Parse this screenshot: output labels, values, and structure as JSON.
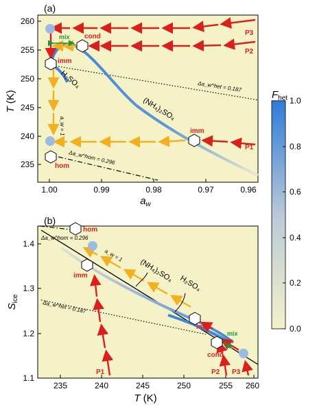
{
  "figure": {
    "panel_a": {
      "label": "(a)",
      "ylabel": "T (K)",
      "xlabel": "a_w",
      "xticks": [
        "1.00",
        "0.99",
        "0.98",
        "0.97",
        "0.96"
      ],
      "yticks": [
        "235",
        "240",
        "245",
        "250",
        "255",
        "260"
      ],
      "annotations": {
        "het": "Δa_w^het = 0.187",
        "hom": "Δa_w^hom = 0.296",
        "aw1": "a_w = 1",
        "h2so4": "H₂SO₄",
        "nh4": "(NH₄)₂SO₄"
      }
    },
    "panel_b": {
      "label": "(b)",
      "ylabel": "S_ice",
      "xlabel": "T (K)",
      "xticks": [
        "235",
        "240",
        "245",
        "250",
        "255",
        "260"
      ],
      "yticks": [
        "1.1",
        "1.2",
        "1.3",
        "1.4"
      ],
      "annotations": {
        "het": "Δa_w^het = 0.187",
        "hom": "Δa_w^hom = 0.296",
        "aw1": "a_w = 1",
        "h2so4": "H₂SO₄",
        "nh4": "(NH₄)₂SO₄"
      }
    },
    "point_labels": {
      "p1": "P1",
      "p2": "P2",
      "p3": "P3",
      "imm": "imm",
      "hom": "hom",
      "cond": "cond",
      "mix": "mix"
    },
    "colorbar": {
      "title": "F_het",
      "ticks": [
        "0.0",
        "0.2",
        "0.4",
        "0.6",
        "0.8",
        "1.0"
      ],
      "range": [
        0,
        1
      ]
    },
    "colors": {
      "background": "#f6f2c8",
      "arrow_red": "#d8201c",
      "arrow_orange": "#f2b020",
      "curve_blue": "#3f86d6",
      "marker_fill": "#9bbbe0",
      "mix_green": "#1a9a3a"
    }
  },
  "chart_data": [
    {
      "panel": "a",
      "type": "line",
      "xlabel": "a_w",
      "ylabel": "T (K)",
      "xlim": [
        1.001,
        0.955
      ],
      "ylim": [
        233,
        259.5
      ],
      "xlim_note": "reversed axis",
      "series": [
        {
          "name": "(NH₄)₂SO₄",
          "x": [
            0.9995,
            0.997,
            0.994,
            0.991,
            0.988,
            0.985,
            0.982,
            0.979,
            0.976,
            0.972,
            0.968,
            0.964,
            0.96,
            0.956
          ],
          "y": [
            252.3,
            255.4,
            255.5,
            254.2,
            252.3,
            250.5,
            248.5,
            246.5,
            244.3,
            241.7,
            239.4,
            237.2,
            235.3,
            233.3
          ]
        },
        {
          "name": "H₂SO₄",
          "x": [
            1.0,
            0.998,
            0.996,
            0.9935
          ],
          "y": [
            252.6,
            251.4,
            250.0,
            248.0
          ]
        }
      ],
      "points": [
        {
          "label": "P3 start",
          "x": 1.0,
          "y": 258.4
        },
        {
          "label": "cond",
          "x": 0.9935,
          "y": 255.6
        },
        {
          "label": "imm",
          "x": 1.0,
          "y": 252.5
        },
        {
          "label": "imm",
          "x": 1.0,
          "y": 238.5
        },
        {
          "label": "imm",
          "x": 0.9695,
          "y": 239.0
        },
        {
          "label": "hom",
          "x": 1.0,
          "y": 236.0
        }
      ]
    },
    {
      "panel": "b",
      "type": "line",
      "xlabel": "T (K)",
      "ylabel": "S_ice",
      "xlim": [
        233,
        260.5
      ],
      "ylim": [
        1.1,
        1.46
      ],
      "series": [
        {
          "name": "a_w = 1",
          "x": [
            233,
            260.5
          ],
          "y": [
            1.455,
            1.15
          ]
        },
        {
          "name": "(NH₄)₂SO₄",
          "x": [
            238.5,
            242,
            246,
            250,
            254,
            257
          ],
          "y": [
            1.375,
            1.335,
            1.295,
            1.26,
            1.215,
            1.17
          ]
        },
        {
          "name": "H₂SO₄",
          "x": [
            248,
            250,
            252,
            254,
            256
          ],
          "y": [
            1.262,
            1.248,
            1.232,
            1.213,
            1.19
          ]
        },
        {
          "name": "Δa_w^het = 0.187",
          "x": [
            233,
            253
          ],
          "y": [
            1.293,
            1.223
          ]
        },
        {
          "name": "P1",
          "x": [
            241.2,
            239.8,
            239.0,
            238.9
          ],
          "y": [
            1.1,
            1.19,
            1.3,
            1.39
          ]
        },
        {
          "name": "P2",
          "x": [
            256.5,
            255.8,
            255.4
          ],
          "y": [
            1.1,
            1.15,
            1.18
          ]
        },
        {
          "name": "P3",
          "x": [
            259.2,
            258.9,
            258.6
          ],
          "y": [
            1.1,
            1.13,
            1.155
          ]
        }
      ],
      "points": [
        {
          "label": "hom",
          "x": 236.5,
          "y": 1.433
        },
        {
          "label": "imm",
          "x": 238.9,
          "y": 1.39
        },
        {
          "label": "imm",
          "x": 238.0,
          "y": 1.36
        },
        {
          "label": "imm",
          "x": 252.0,
          "y": 1.233
        },
        {
          "label": "cond",
          "x": 255.0,
          "y": 1.18
        },
        {
          "label": "P3 start",
          "x": 258.5,
          "y": 1.155
        }
      ]
    }
  ]
}
